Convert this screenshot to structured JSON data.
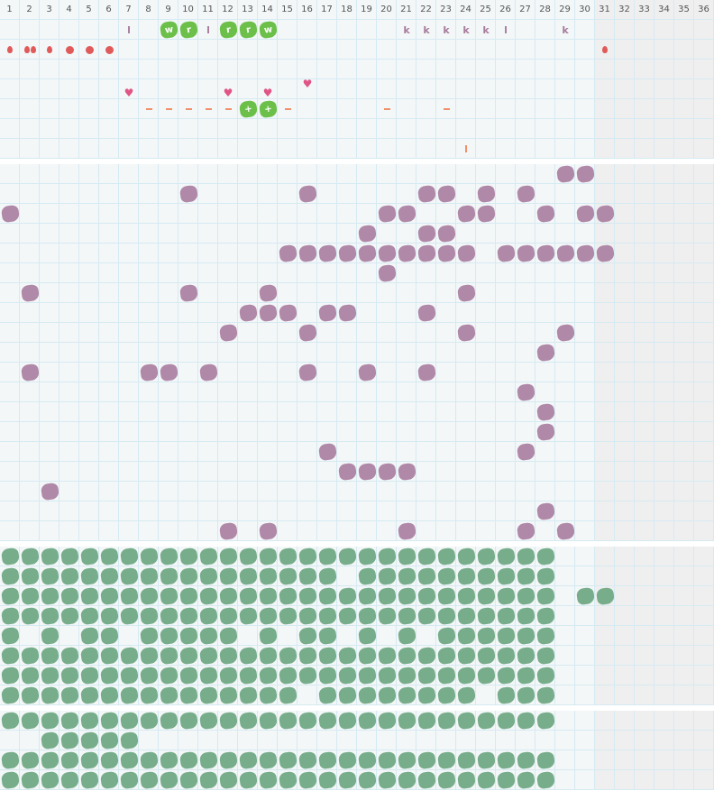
{
  "header": {
    "columns": [
      "1",
      "2",
      "3",
      "4",
      "5",
      "6",
      "7",
      "8",
      "9",
      "10",
      "11",
      "12",
      "13",
      "14",
      "15",
      "16",
      "17",
      "18",
      "19",
      "20",
      "21",
      "22",
      "23",
      "24",
      "25",
      "26",
      "27",
      "28",
      "29",
      "30",
      "31",
      "32",
      "33",
      "34",
      "35",
      "36"
    ]
  },
  "inactive_from_column": 31,
  "colors": {
    "grid": "#d6eaf2",
    "cell": "#f3f7f8",
    "inactive": "#efefef",
    "purple": "#b088a8",
    "green": "#78ad8b",
    "bright_green": "#6cc04a",
    "red": "#e05a5a",
    "heart": "#e05585",
    "orange": "#f0906a"
  },
  "section1": {
    "rows": [
      [
        {
          "col": 7,
          "mark": "letter",
          "text": "l"
        },
        {
          "col": 9,
          "mark": "badge",
          "text": "w"
        },
        {
          "col": 10,
          "mark": "badge",
          "text": "r"
        },
        {
          "col": 11,
          "mark": "letter",
          "text": "l"
        },
        {
          "col": 12,
          "mark": "badge",
          "text": "r"
        },
        {
          "col": 13,
          "mark": "badge",
          "text": "r"
        },
        {
          "col": 14,
          "mark": "badge",
          "text": "w"
        },
        {
          "col": 21,
          "mark": "letter",
          "text": "k"
        },
        {
          "col": 22,
          "mark": "letter",
          "text": "k"
        },
        {
          "col": 23,
          "mark": "letter",
          "text": "k"
        },
        {
          "col": 24,
          "mark": "letter",
          "text": "k"
        },
        {
          "col": 25,
          "mark": "letter",
          "text": "k"
        },
        {
          "col": 26,
          "mark": "letter",
          "text": "l"
        },
        {
          "col": 29,
          "mark": "letter",
          "text": "k"
        }
      ],
      [
        {
          "col": 1,
          "mark": "drop"
        },
        {
          "col": 2,
          "mark": "drop2"
        },
        {
          "col": 3,
          "mark": "drop"
        },
        {
          "col": 4,
          "mark": "dot"
        },
        {
          "col": 5,
          "mark": "dot"
        },
        {
          "col": 6,
          "mark": "dot"
        },
        {
          "col": 31,
          "mark": "drop"
        }
      ],
      [],
      [
        {
          "col": 7,
          "mark": "heart"
        },
        {
          "col": 12,
          "mark": "heart"
        },
        {
          "col": 14,
          "mark": "heart"
        },
        {
          "col": 16,
          "mark": "heart-high"
        }
      ],
      [
        {
          "col": 8,
          "mark": "dash"
        },
        {
          "col": 9,
          "mark": "dash"
        },
        {
          "col": 10,
          "mark": "dash"
        },
        {
          "col": 11,
          "mark": "dash"
        },
        {
          "col": 12,
          "mark": "dash"
        },
        {
          "col": 13,
          "mark": "badge",
          "text": "+"
        },
        {
          "col": 14,
          "mark": "badge",
          "text": "+"
        },
        {
          "col": 15,
          "mark": "dash"
        },
        {
          "col": 20,
          "mark": "dash"
        },
        {
          "col": 23,
          "mark": "dash"
        }
      ],
      [],
      [
        {
          "col": 24,
          "mark": "bar"
        }
      ]
    ]
  },
  "section2": {
    "color": "purple",
    "rows": [
      [
        29,
        30
      ],
      [
        10,
        16,
        22,
        23,
        25,
        27
      ],
      [
        1,
        20,
        21,
        24,
        25,
        28,
        30,
        31
      ],
      [
        19,
        22,
        23
      ],
      [
        15,
        16,
        17,
        18,
        19,
        20,
        21,
        22,
        23,
        24,
        26,
        27,
        28,
        29,
        30,
        31
      ],
      [
        20
      ],
      [
        2,
        10,
        14,
        24
      ],
      [
        13,
        14,
        15,
        17,
        18,
        22
      ],
      [
        12,
        16,
        24,
        29
      ],
      [
        28
      ],
      [
        2,
        8,
        9,
        11,
        16,
        19,
        22
      ],
      [
        27
      ],
      [
        28
      ],
      [
        28
      ],
      [
        17,
        27
      ],
      [
        18,
        19,
        20,
        21
      ],
      [
        3
      ],
      [
        28
      ],
      [
        12,
        14,
        21,
        27,
        29
      ]
    ]
  },
  "section3": {
    "color": "green",
    "rows": [
      [
        1,
        2,
        3,
        4,
        5,
        6,
        7,
        8,
        9,
        10,
        11,
        12,
        13,
        14,
        15,
        16,
        17,
        18,
        19,
        20,
        21,
        22,
        23,
        24,
        25,
        26,
        27,
        28
      ],
      [
        1,
        2,
        3,
        4,
        5,
        6,
        7,
        8,
        9,
        10,
        11,
        12,
        13,
        14,
        15,
        16,
        17,
        19,
        20,
        21,
        22,
        23,
        24,
        25,
        26,
        27,
        28
      ],
      [
        1,
        2,
        3,
        4,
        5,
        6,
        7,
        8,
        9,
        10,
        11,
        12,
        13,
        14,
        15,
        16,
        17,
        18,
        19,
        20,
        21,
        22,
        23,
        24,
        25,
        26,
        27,
        28,
        30,
        31
      ],
      [
        1,
        2,
        3,
        4,
        5,
        6,
        7,
        8,
        9,
        10,
        11,
        12,
        13,
        14,
        15,
        16,
        17,
        18,
        19,
        20,
        21,
        22,
        23,
        24,
        25,
        26,
        27,
        28
      ],
      [
        1,
        3,
        5,
        6,
        8,
        9,
        10,
        11,
        12,
        14,
        16,
        17,
        19,
        21,
        23,
        24,
        25,
        26,
        27,
        28
      ],
      [
        1,
        2,
        3,
        4,
        5,
        6,
        7,
        8,
        9,
        10,
        11,
        12,
        13,
        14,
        15,
        16,
        17,
        18,
        19,
        20,
        21,
        22,
        23,
        24,
        25,
        26,
        27,
        28
      ],
      [
        1,
        2,
        3,
        4,
        5,
        6,
        7,
        8,
        9,
        10,
        11,
        12,
        13,
        14,
        15,
        16,
        17,
        18,
        19,
        20,
        21,
        22,
        23,
        24,
        25,
        26,
        27,
        28
      ],
      [
        1,
        2,
        3,
        4,
        5,
        6,
        7,
        8,
        9,
        10,
        11,
        12,
        13,
        14,
        15,
        17,
        18,
        19,
        20,
        21,
        22,
        23,
        24,
        26,
        27,
        28
      ]
    ]
  },
  "section4": {
    "color": "green",
    "rows": [
      [
        1,
        2,
        3,
        4,
        5,
        6,
        7,
        8,
        9,
        10,
        11,
        12,
        13,
        14,
        15,
        16,
        17,
        18,
        19,
        20,
        21,
        22,
        23,
        24,
        25,
        26,
        27,
        28
      ],
      [
        3,
        4,
        5,
        6,
        7
      ],
      [
        1,
        2,
        3,
        4,
        5,
        6,
        7,
        8,
        9,
        10,
        11,
        12,
        13,
        14,
        15,
        16,
        17,
        18,
        19,
        20,
        21,
        22,
        23,
        24,
        25,
        26,
        27,
        28
      ],
      [
        1,
        2,
        3,
        4,
        5,
        6,
        7,
        8,
        9,
        10,
        11,
        12,
        13,
        14,
        15,
        16,
        17,
        18,
        19,
        20,
        21,
        22,
        23,
        24,
        25,
        26,
        27,
        28
      ]
    ]
  }
}
